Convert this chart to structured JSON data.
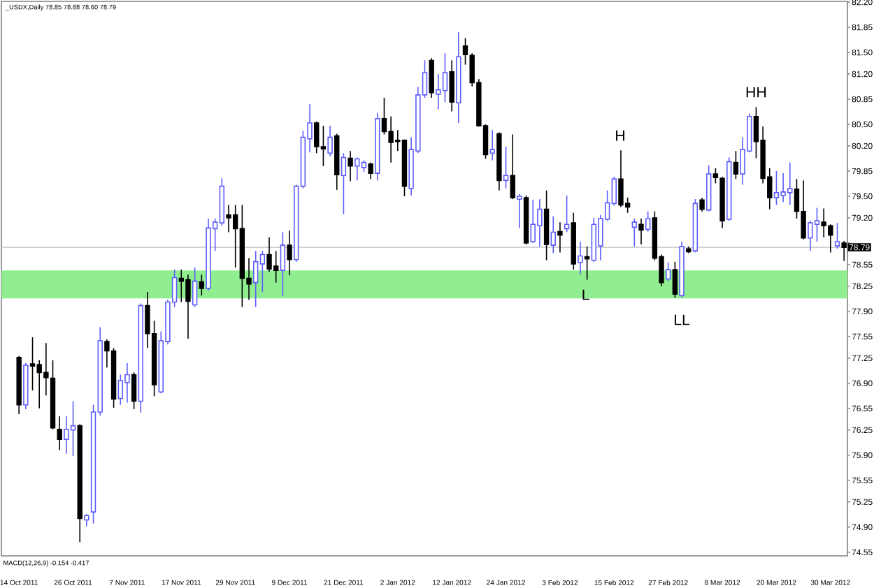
{
  "chart_data": {
    "type": "candlestick",
    "title": "_USDX,Daily 78.85 78.88 78.60 78.79",
    "categories": [
      "14 Oct 2011",
      null,
      null,
      null,
      null,
      null,
      null,
      null,
      "26 Oct 2011",
      null,
      null,
      null,
      null,
      null,
      null,
      null,
      "7 Nov 2011",
      null,
      null,
      null,
      null,
      null,
      null,
      null,
      "17 Nov 2011",
      null,
      null,
      null,
      null,
      null,
      null,
      null,
      "29 Nov 2011",
      null,
      null,
      null,
      null,
      null,
      null,
      null,
      "9 Dec 2011",
      null,
      null,
      null,
      null,
      null,
      null,
      null,
      "21 Dec 2011",
      null,
      null,
      null,
      null,
      null,
      null,
      null,
      "2 Jan 2012",
      null,
      null,
      null,
      null,
      null,
      null,
      null,
      "12 Jan 2012",
      null,
      null,
      null,
      null,
      null,
      null,
      null,
      "24 Jan 2012",
      null,
      null,
      null,
      null,
      null,
      null,
      null,
      "3 Feb 2012",
      null,
      null,
      null,
      null,
      null,
      null,
      null,
      "15 Feb 2012",
      null,
      null,
      null,
      null,
      null,
      null,
      null,
      "27 Feb 2012",
      null,
      null,
      null,
      null,
      null,
      null,
      null,
      "8 Mar 2012",
      null,
      null,
      null,
      null,
      null,
      null,
      null,
      "20 Mar 2012",
      null,
      null,
      null,
      null,
      null,
      null,
      null,
      "30 Mar 2012",
      null,
      null
    ],
    "ohlc": [
      [
        77.26,
        77.28,
        76.47,
        76.6
      ],
      [
        76.6,
        77.18,
        76.54,
        77.15
      ],
      [
        77.17,
        77.54,
        76.8,
        77.14
      ],
      [
        77.16,
        77.22,
        76.55,
        77.05
      ],
      [
        77.05,
        77.46,
        76.73,
        76.98
      ],
      [
        76.97,
        77.22,
        76.26,
        76.28
      ],
      [
        76.26,
        76.44,
        75.97,
        76.12
      ],
      [
        76.12,
        76.44,
        75.92,
        76.26
      ],
      [
        76.25,
        76.65,
        75.89,
        76.31
      ],
      [
        76.31,
        76.33,
        74.69,
        75.02
      ],
      [
        75.0,
        75.08,
        74.91,
        75.06
      ],
      [
        75.11,
        76.6,
        74.95,
        76.5
      ],
      [
        76.5,
        77.68,
        76.45,
        77.49
      ],
      [
        77.48,
        77.51,
        77.12,
        77.35
      ],
      [
        77.35,
        77.39,
        76.56,
        76.68
      ],
      [
        76.69,
        77.02,
        76.6,
        76.94
      ],
      [
        76.91,
        77.18,
        76.63,
        77.02
      ],
      [
        77.02,
        77.05,
        76.54,
        76.65
      ],
      [
        76.65,
        78.01,
        76.49,
        77.98
      ],
      [
        77.98,
        78.17,
        77.39,
        77.59
      ],
      [
        77.59,
        77.77,
        76.72,
        76.88
      ],
      [
        76.78,
        77.62,
        76.76,
        77.49
      ],
      [
        77.48,
        78.06,
        77.44,
        78.03
      ],
      [
        78.03,
        78.48,
        77.96,
        78.37
      ],
      [
        78.36,
        78.48,
        78.03,
        78.32
      ],
      [
        78.34,
        78.41,
        77.52,
        78.04
      ],
      [
        77.99,
        78.51,
        77.96,
        78.32
      ],
      [
        78.31,
        78.41,
        78.12,
        78.22
      ],
      [
        78.22,
        79.19,
        78.19,
        79.06
      ],
      [
        79.05,
        79.19,
        78.74,
        79.14
      ],
      [
        79.13,
        79.75,
        79.09,
        79.64
      ],
      [
        79.24,
        79.38,
        79.0,
        79.2
      ],
      [
        79.24,
        79.38,
        78.51,
        79.05
      ],
      [
        79.05,
        79.38,
        77.96,
        78.36
      ],
      [
        78.36,
        78.64,
        78.06,
        78.28
      ],
      [
        78.3,
        78.74,
        77.96,
        78.59
      ],
      [
        78.56,
        78.74,
        78.17,
        78.69
      ],
      [
        78.69,
        78.93,
        78.45,
        78.49
      ],
      [
        78.53,
        78.74,
        78.3,
        78.47
      ],
      [
        78.47,
        79.0,
        78.11,
        78.82
      ],
      [
        78.82,
        79.02,
        78.4,
        78.62
      ],
      [
        78.62,
        79.66,
        78.59,
        79.64
      ],
      [
        79.64,
        80.41,
        79.61,
        80.32
      ],
      [
        80.3,
        80.78,
        80.11,
        80.52
      ],
      [
        80.52,
        80.54,
        80.1,
        80.19
      ],
      [
        80.19,
        80.48,
        79.92,
        80.16
      ],
      [
        80.1,
        80.48,
        80.06,
        80.32
      ],
      [
        80.34,
        80.37,
        79.59,
        79.8
      ],
      [
        79.79,
        80.1,
        79.25,
        80.04
      ],
      [
        80.03,
        80.13,
        79.71,
        79.92
      ],
      [
        79.92,
        80.04,
        79.72,
        80.02
      ],
      [
        79.9,
        80.0,
        79.84,
        79.97
      ],
      [
        79.95,
        79.97,
        79.74,
        79.82
      ],
      [
        79.82,
        80.66,
        79.72,
        80.58
      ],
      [
        80.58,
        80.87,
        80.36,
        80.4
      ],
      [
        80.4,
        80.61,
        79.97,
        80.25
      ],
      [
        80.28,
        80.42,
        80.13,
        80.26
      ],
      [
        80.28,
        80.29,
        79.5,
        79.64
      ],
      [
        79.61,
        80.32,
        79.51,
        80.15
      ],
      [
        80.13,
        81.02,
        80.1,
        80.91
      ],
      [
        80.91,
        81.39,
        80.87,
        81.22
      ],
      [
        81.39,
        81.42,
        80.87,
        80.94
      ],
      [
        80.92,
        81.2,
        80.71,
        80.98
      ],
      [
        80.97,
        81.49,
        80.81,
        81.22
      ],
      [
        81.23,
        81.39,
        80.68,
        80.81
      ],
      [
        80.8,
        81.78,
        80.52,
        81.44
      ],
      [
        81.59,
        81.7,
        81.33,
        81.47
      ],
      [
        81.46,
        81.49,
        81.03,
        81.08
      ],
      [
        81.08,
        81.13,
        80.47,
        80.48
      ],
      [
        80.48,
        80.5,
        80.02,
        80.08
      ],
      [
        80.1,
        80.42,
        80.0,
        80.15
      ],
      [
        80.37,
        80.39,
        79.58,
        79.72
      ],
      [
        79.72,
        80.19,
        79.61,
        79.79
      ],
      [
        79.79,
        80.36,
        79.46,
        79.48
      ],
      [
        79.46,
        79.53,
        79.06,
        79.5
      ],
      [
        79.48,
        79.51,
        78.83,
        78.85
      ],
      [
        78.87,
        79.45,
        78.85,
        79.11
      ],
      [
        79.09,
        79.46,
        78.8,
        79.32
      ],
      [
        79.32,
        79.58,
        78.61,
        78.83
      ],
      [
        78.82,
        79.22,
        78.71,
        79.0
      ],
      [
        79.01,
        79.14,
        78.72,
        78.96
      ],
      [
        79.05,
        79.51,
        79.0,
        79.11
      ],
      [
        79.13,
        79.27,
        78.48,
        78.56
      ],
      [
        78.58,
        78.87,
        78.41,
        78.67
      ],
      [
        78.66,
        78.8,
        78.34,
        78.63
      ],
      [
        78.61,
        79.2,
        78.59,
        79.11
      ],
      [
        78.81,
        79.24,
        78.61,
        79.19
      ],
      [
        79.18,
        79.58,
        79.16,
        79.41
      ],
      [
        79.4,
        79.77,
        79.37,
        79.74
      ],
      [
        79.74,
        80.14,
        79.35,
        79.38
      ],
      [
        79.4,
        79.48,
        79.27,
        79.35
      ],
      [
        79.07,
        79.19,
        78.8,
        79.14
      ],
      [
        79.11,
        79.19,
        78.83,
        79.03
      ],
      [
        79.04,
        79.29,
        79.01,
        79.19
      ],
      [
        79.2,
        79.29,
        78.61,
        78.64
      ],
      [
        78.66,
        78.69,
        78.25,
        78.3
      ],
      [
        78.35,
        78.58,
        78.32,
        78.48
      ],
      [
        78.48,
        78.59,
        78.09,
        78.14
      ],
      [
        78.12,
        78.87,
        78.09,
        78.8
      ],
      [
        78.77,
        78.8,
        78.71,
        78.73
      ],
      [
        78.74,
        79.46,
        78.72,
        79.4
      ],
      [
        79.45,
        79.48,
        79.29,
        79.32
      ],
      [
        79.31,
        79.93,
        79.29,
        79.81
      ],
      [
        79.81,
        79.89,
        79.68,
        79.76
      ],
      [
        79.75,
        79.77,
        79.06,
        79.16
      ],
      [
        79.18,
        80.04,
        79.16,
        79.98
      ],
      [
        79.97,
        80.13,
        79.74,
        79.81
      ],
      [
        79.81,
        80.32,
        79.66,
        80.15
      ],
      [
        80.13,
        80.65,
        80.11,
        80.61
      ],
      [
        80.61,
        80.74,
        80.03,
        80.26
      ],
      [
        80.28,
        80.47,
        79.68,
        79.75
      ],
      [
        79.77,
        79.89,
        79.32,
        79.48
      ],
      [
        79.48,
        79.85,
        79.38,
        79.55
      ],
      [
        79.51,
        79.82,
        79.42,
        79.56
      ],
      [
        79.55,
        79.97,
        79.38,
        79.61
      ],
      [
        79.6,
        79.74,
        79.19,
        79.29
      ],
      [
        79.29,
        79.72,
        78.9,
        78.92
      ],
      [
        78.92,
        79.16,
        78.74,
        79.13
      ],
      [
        79.11,
        79.34,
        78.87,
        79.16
      ],
      [
        79.14,
        79.33,
        78.93,
        79.09
      ],
      [
        79.09,
        79.11,
        78.72,
        78.96
      ],
      [
        78.81,
        79.13,
        78.77,
        78.87
      ],
      [
        78.85,
        78.88,
        78.6,
        78.79
      ]
    ],
    "colors": [
      "#000000",
      "#5c5cff",
      "#000000",
      "#000000",
      "#000000",
      "#000000",
      "#000000",
      "#5c5cff",
      "#5c5cff",
      "#000000",
      "#5c5cff",
      "#5c5cff",
      "#5c5cff",
      "#000000",
      "#000000",
      "#5c5cff",
      "#5c5cff",
      "#000000",
      "#5c5cff",
      "#000000",
      "#000000",
      "#5c5cff",
      "#5c5cff",
      "#5c5cff",
      "#000000",
      "#000000",
      "#5c5cff",
      "#000000",
      "#5c5cff",
      "#5c5cff",
      "#5c5cff",
      "#000000",
      "#000000",
      "#000000",
      "#000000",
      "#5c5cff",
      "#5c5cff",
      "#000000",
      "#000000",
      "#5c5cff",
      "#000000",
      "#5c5cff",
      "#5c5cff",
      "#5c5cff",
      "#000000",
      "#000000",
      "#5c5cff",
      "#000000",
      "#5c5cff",
      "#000000",
      "#5c5cff",
      "#5c5cff",
      "#000000",
      "#5c5cff",
      "#000000",
      "#000000",
      "#000000",
      "#000000",
      "#5c5cff",
      "#5c5cff",
      "#5c5cff",
      "#000000",
      "#5c5cff",
      "#5c5cff",
      "#000000",
      "#5c5cff",
      "#000000",
      "#000000",
      "#000000",
      "#000000",
      "#5c5cff",
      "#000000",
      "#5c5cff",
      "#000000",
      "#5c5cff",
      "#000000",
      "#5c5cff",
      "#5c5cff",
      "#000000",
      "#5c5cff",
      "#000000",
      "#5c5cff",
      "#000000",
      "#5c5cff",
      "#000000",
      "#5c5cff",
      "#5c5cff",
      "#5c5cff",
      "#5c5cff",
      "#000000",
      "#000000",
      "#5c5cff",
      "#000000",
      "#5c5cff",
      "#000000",
      "#000000",
      "#5c5cff",
      "#000000",
      "#5c5cff",
      "#000000",
      "#5c5cff",
      "#000000",
      "#5c5cff",
      "#000000",
      "#000000",
      "#5c5cff",
      "#000000",
      "#5c5cff",
      "#5c5cff",
      "#000000",
      "#000000",
      "#000000",
      "#5c5cff",
      "#5c5cff",
      "#5c5cff",
      "#000000",
      "#000000",
      "#5c5cff",
      "#5c5cff",
      "#000000",
      "#000000",
      "#5c5cff",
      "#000000"
    ],
    "ylim": [
      74.5,
      82.21
    ],
    "yticks": [
      {
        "value": 82.2,
        "label": "82.20"
      },
      81.85,
      {
        "value": 81.5,
        "label": "81.50"
      },
      {
        "value": 81.2,
        "label": "81.20"
      },
      80.85,
      {
        "value": 80.5,
        "label": "80.50"
      },
      {
        "value": 80.2,
        "label": "80.20"
      },
      79.85,
      {
        "value": 79.5,
        "label": "79.50"
      },
      {
        "value": 79.2,
        "label": "79.20"
      },
      {
        "value": 78.85,
        "label": null
      },
      78.55,
      78.25,
      {
        "value": 77.9,
        "label": "77.90"
      },
      77.55,
      77.25,
      {
        "value": 76.9,
        "label": "76.90"
      },
      76.55,
      76.25,
      {
        "value": 75.9,
        "label": "75.90"
      },
      75.55,
      75.25,
      {
        "value": 74.9,
        "label": "74.90"
      },
      74.55
    ],
    "ref_lines": [
      {
        "axis": "y",
        "value": 78.79,
        "label": "78.79",
        "color": "#c0c0c0"
      }
    ],
    "bands": [
      {
        "axis": "y",
        "from": 78.08,
        "to": 78.47,
        "color": "#90ee90"
      }
    ],
    "annotations": [
      "H",
      "L",
      "LL",
      "HH",
      "MACD(12,26,9) -0.154 -0.417"
    ]
  }
}
